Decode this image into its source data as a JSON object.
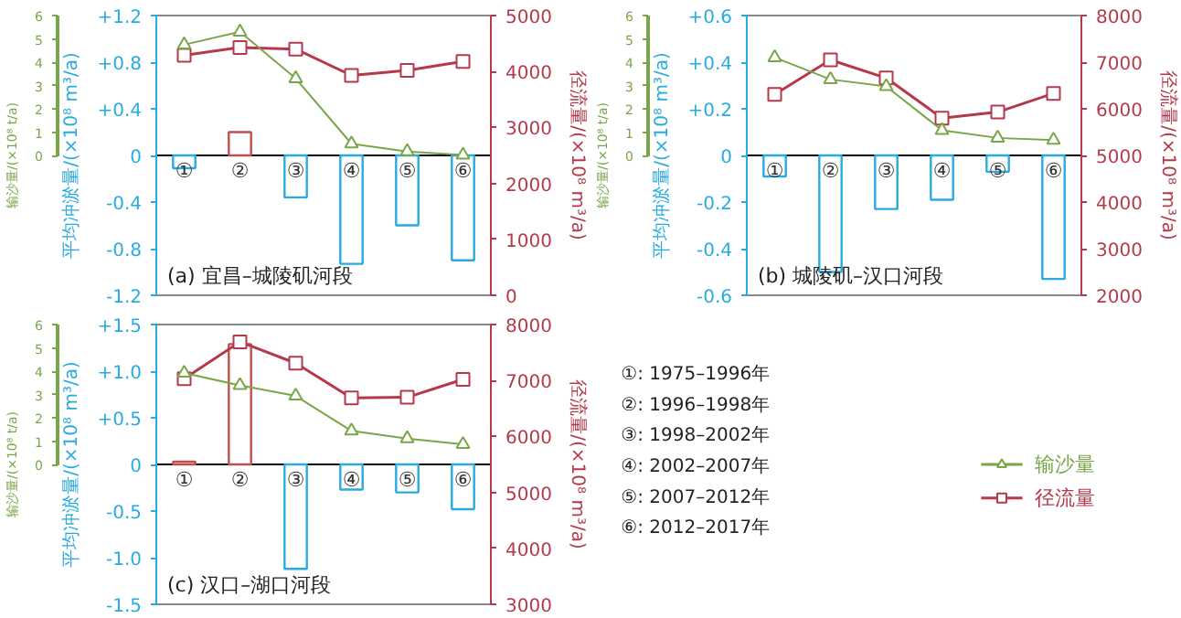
{
  "chart_data": [
    {
      "type": "bar",
      "title": "(a) 宜昌–城陵矶河段",
      "ylabel": "平均冲淤量/(×10⁸ m³/a)",
      "y2label": "径流量/(×10⁸ m³/a)",
      "y3label": "输沙量/(×10⁸ t/a)",
      "categories": [
        "①",
        "②",
        "③",
        "④",
        "⑤",
        "⑥"
      ],
      "values": [
        -0.11,
        0.2,
        -0.36,
        -0.93,
        -0.6,
        -0.9
      ],
      "colors": [
        "#29abe2",
        "#c0504d",
        "#29abe2",
        "#29abe2",
        "#29abe2",
        "#29abe2"
      ],
      "ylim": [
        -1.2,
        1.2
      ],
      "yticks": [
        {
          "value": -1.2,
          "label": "-1.2"
        },
        {
          "value": -0.8,
          "label": "-0.8"
        },
        {
          "value": -0.4,
          "label": "-0.4"
        },
        0,
        {
          "value": 0.4,
          "label": "+0.4"
        },
        {
          "value": 0.8,
          "label": "+0.8"
        },
        {
          "value": 1.2,
          "label": "+1.2"
        }
      ],
      "y2lim": [
        0,
        5000
      ],
      "y2ticks": [
        0,
        1000,
        2000,
        3000,
        4000,
        5000
      ],
      "y3lim": [
        -6,
        6
      ],
      "y3ticks": [
        0,
        1,
        2,
        3,
        4,
        5,
        6
      ],
      "series": [
        {
          "type": "line",
          "axis": "y3",
          "marker": "triangle",
          "color": "#7aa64a",
          "values": [
            4.75,
            5.3,
            3.3,
            0.5,
            0.17,
            0.02
          ]
        },
        {
          "type": "line",
          "axis": "y2",
          "marker": "square",
          "color": "#b5394a",
          "values": [
            4290,
            4430,
            4400,
            3930,
            4020,
            4180
          ]
        }
      ],
      "grid": false,
      "legend": false
    },
    {
      "type": "bar",
      "title": "(b) 城陵矶–汉口河段",
      "ylabel": "平均冲淤量/(×10⁸ m³/a)",
      "y2label": "径流量/(×10⁸ m³/a)",
      "y3label": "输沙量/(×10⁸ t/a)",
      "categories": [
        "①",
        "②",
        "③",
        "④",
        "⑤",
        "⑥"
      ],
      "values": [
        -0.09,
        -0.5,
        -0.23,
        -0.19,
        -0.07,
        -0.53
      ],
      "colors": [
        "#29abe2",
        "#29abe2",
        "#29abe2",
        "#29abe2",
        "#29abe2",
        "#29abe2"
      ],
      "ylim": [
        -0.6,
        0.6
      ],
      "yticks": [
        {
          "value": -0.6,
          "label": "-0.6"
        },
        {
          "value": -0.4,
          "label": "-0.4"
        },
        {
          "value": -0.2,
          "label": "-0.2"
        },
        0,
        {
          "value": 0.2,
          "label": "+0.2"
        },
        {
          "value": 0.4,
          "label": "+0.4"
        },
        {
          "value": 0.6,
          "label": "+0.6"
        }
      ],
      "y2lim": [
        2000,
        8000
      ],
      "y2ticks": [
        2000,
        3000,
        4000,
        5000,
        6000,
        7000,
        8000
      ],
      "y3lim": [
        -6,
        6
      ],
      "y3ticks": [
        0,
        1,
        2,
        3,
        4,
        5,
        6
      ],
      "series": [
        {
          "type": "line",
          "axis": "y3",
          "marker": "triangle",
          "color": "#7aa64a",
          "values": [
            4.2,
            3.26,
            2.96,
            1.08,
            0.75,
            0.66
          ]
        },
        {
          "type": "line",
          "axis": "y2",
          "marker": "square",
          "color": "#b5394a",
          "values": [
            6310,
            7050,
            6660,
            5800,
            5930,
            6330
          ]
        }
      ],
      "grid": false,
      "legend": false
    },
    {
      "type": "bar",
      "title": "(c) 汉口–湖口河段",
      "ylabel": "平均冲淤量/(×10⁸ m³/a)",
      "y2label": "径流量/(×10⁸ m³/a)",
      "y3label": "输沙量/(×10⁸ t/a)",
      "categories": [
        "①",
        "②",
        "③",
        "④",
        "⑤",
        "⑥"
      ],
      "values": [
        0.03,
        1.29,
        -1.12,
        -0.27,
        -0.3,
        -0.48
      ],
      "colors": [
        "#c0504d",
        "#c0504d",
        "#29abe2",
        "#29abe2",
        "#29abe2",
        "#29abe2"
      ],
      "ylim": [
        -1.5,
        1.5
      ],
      "yticks": [
        {
          "value": -1.5,
          "label": "-1.5"
        },
        {
          "value": -1.0,
          "label": "-1.0"
        },
        {
          "value": -0.5,
          "label": "-0.5"
        },
        0,
        {
          "value": 0.5,
          "label": "+0.5"
        },
        {
          "value": 1.0,
          "label": "+1.0"
        },
        {
          "value": 1.5,
          "label": "+1.5"
        }
      ],
      "y2lim": [
        3000,
        8000
      ],
      "y2ticks": [
        3000,
        4000,
        5000,
        6000,
        7000,
        8000
      ],
      "y3lim": [
        -6,
        6
      ],
      "y3ticks": [
        0,
        1,
        2,
        3,
        4,
        5,
        6
      ],
      "series": [
        {
          "type": "line",
          "axis": "y3",
          "marker": "triangle",
          "name": "输沙量",
          "color": "#7aa64a",
          "values": [
            3.92,
            3.39,
            2.94,
            1.44,
            1.11,
            0.86
          ]
        },
        {
          "type": "line",
          "axis": "y2",
          "marker": "square",
          "name": "径流量",
          "color": "#b5394a",
          "values": [
            7030,
            7690,
            7310,
            6690,
            6700,
            7020
          ]
        }
      ],
      "annotations": [
        "①: 1975–1996年",
        "②: 1996–1998年",
        "③: 1998–2002年",
        "④: 2002–2007年",
        "⑤: 2007–2012年",
        "⑥: 2012–2017年"
      ],
      "grid": false,
      "legend": "right"
    }
  ]
}
